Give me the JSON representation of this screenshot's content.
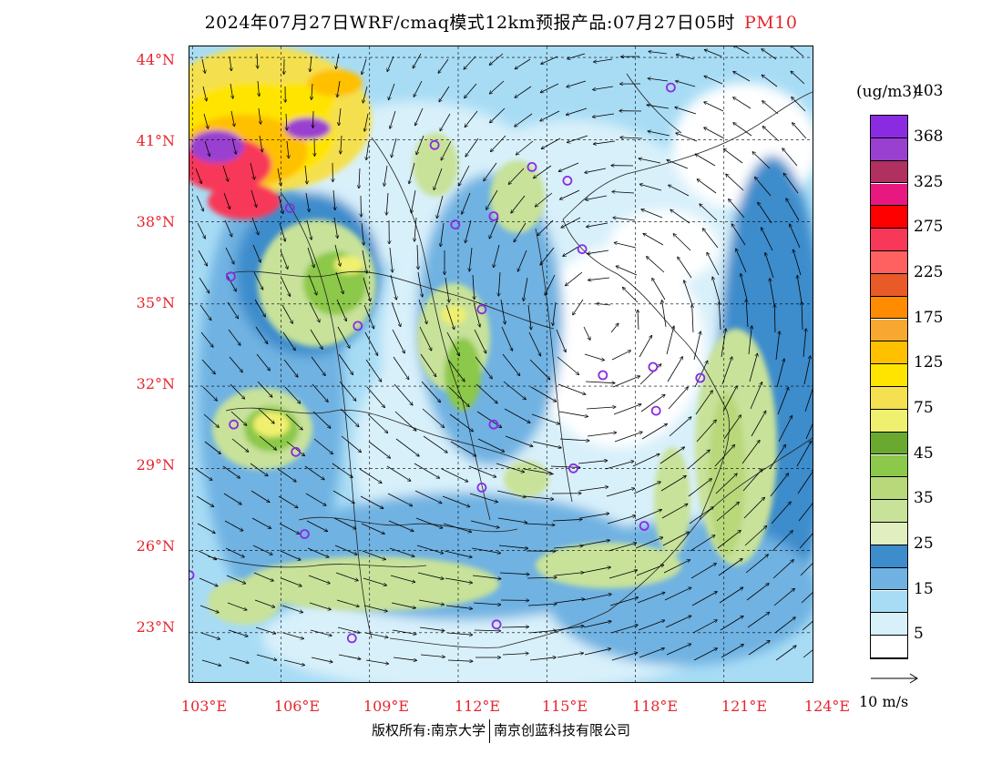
{
  "title": {
    "text": "2024年07月27日WRF/cmaq模式12km预报产品:07月27日05时",
    "variable": "PM10"
  },
  "map": {
    "lat_ticks": [
      "44°N",
      "41°N",
      "38°N",
      "35°N",
      "32°N",
      "29°N",
      "26°N",
      "23°N"
    ],
    "lon_ticks": [
      "103°E",
      "106°E",
      "109°E",
      "112°E",
      "115°E",
      "118°E",
      "121°E",
      "124°E"
    ],
    "lon_range": [
      102.9,
      124
    ],
    "lat_range": [
      21.2,
      44.4
    ],
    "feature": "typhoon-circulation",
    "station_marker_color": "#8a2be2"
  },
  "colorbar": {
    "units": "(ug/m3)",
    "colors": [
      "#ffffff",
      "#d8f0fa",
      "#a8dcf5",
      "#6fb2e2",
      "#3d8ccc",
      "#e0eec0",
      "#c8e29a",
      "#b8d87a",
      "#8cc84a",
      "#6aa830",
      "#f0f070",
      "#f4e050",
      "#ffe400",
      "#ffc000",
      "#f8a830",
      "#ff8c00",
      "#e85a28",
      "#ff6060",
      "#f83858",
      "#ff0000",
      "#e81880",
      "#b03060",
      "#9a40d0",
      "#8a2be2"
    ],
    "labels": [
      "5",
      "15",
      "25",
      "35",
      "45",
      "75",
      "125",
      "175",
      "225",
      "275",
      "325",
      "368",
      "403"
    ]
  },
  "reference_vector": {
    "label": "10 m/s"
  },
  "footer": {
    "left": "版权所有:南京大学",
    "right": "南京创蓝科技有限公司"
  }
}
